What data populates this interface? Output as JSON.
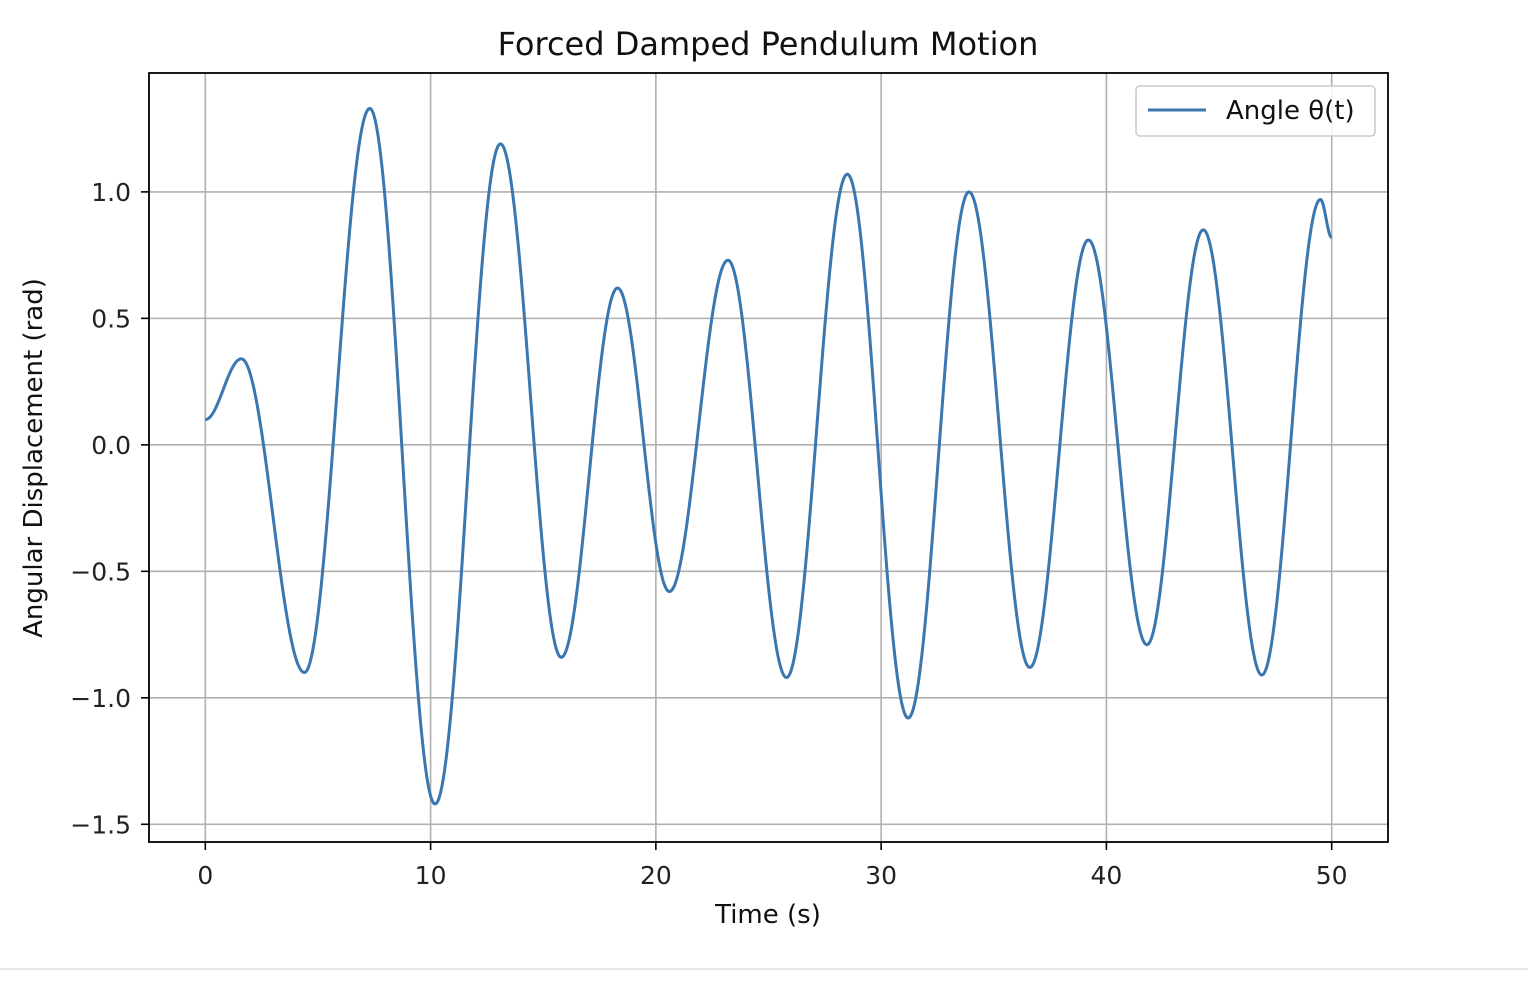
{
  "chart_data": {
    "type": "line",
    "title": "Forced Damped Pendulum Motion",
    "xlabel": "Time (s)",
    "ylabel": "Angular Displacement (rad)",
    "xlim": [
      -2.5,
      52.5
    ],
    "ylim": [
      -1.57,
      1.47
    ],
    "xticks": [
      0,
      10,
      20,
      30,
      40,
      50
    ],
    "xtick_labels": [
      "0",
      "10",
      "20",
      "30",
      "40",
      "50"
    ],
    "yticks": [
      -1.5,
      -1.0,
      -0.5,
      0.0,
      0.5,
      1.0
    ],
    "ytick_labels": [
      "−1.5",
      "−1.0",
      "−0.5",
      "0.0",
      "0.5",
      "1.0"
    ],
    "grid": true,
    "legend_position": "top-right",
    "line_color": "#3a76af",
    "series": [
      {
        "name": "Angle θ(t)",
        "points": [
          [
            0.0,
            0.1
          ],
          [
            1.6,
            0.34
          ],
          [
            4.4,
            -0.9
          ],
          [
            7.3,
            1.33
          ],
          [
            10.2,
            -1.42
          ],
          [
            13.1,
            1.19
          ],
          [
            15.8,
            -0.84
          ],
          [
            18.3,
            0.62
          ],
          [
            20.6,
            -0.58
          ],
          [
            23.2,
            0.73
          ],
          [
            25.8,
            -0.92
          ],
          [
            28.5,
            1.07
          ],
          [
            31.2,
            -1.08
          ],
          [
            33.9,
            1.0
          ],
          [
            36.6,
            -0.88
          ],
          [
            39.2,
            0.81
          ],
          [
            41.8,
            -0.79
          ],
          [
            44.3,
            0.85
          ],
          [
            46.9,
            -0.91
          ],
          [
            49.5,
            0.97
          ],
          [
            50.0,
            0.82
          ]
        ]
      }
    ]
  }
}
